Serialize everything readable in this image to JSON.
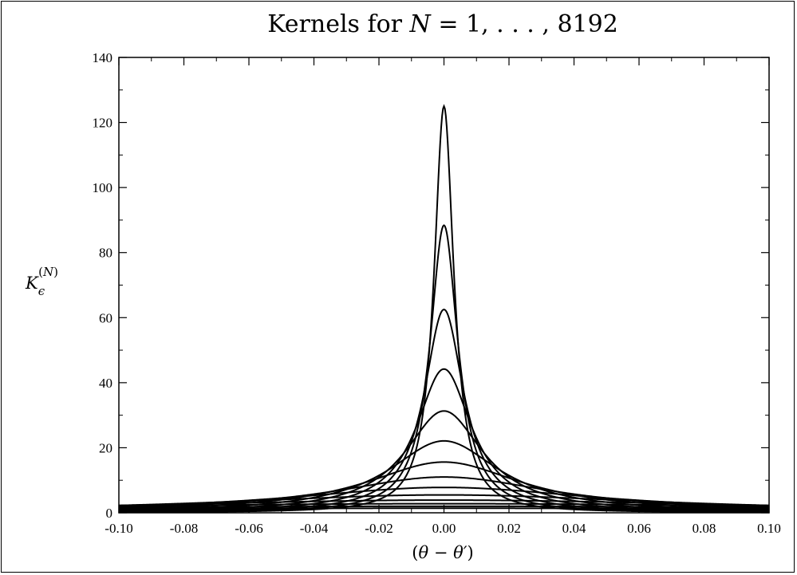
{
  "chart_data": {
    "type": "line",
    "title": "Kernels for N = 1, . . . , 8192",
    "xlabel": "(θ − θ′)",
    "ylabel": "K_ϵ^(N)",
    "xlim": [
      -0.1,
      0.1
    ],
    "ylim": [
      0,
      140
    ],
    "x_ticks": [
      "-0.10",
      "-0.08",
      "-0.06",
      "-0.04",
      "-0.02",
      "0.00",
      "0.02",
      "0.04",
      "0.06",
      "0.08",
      "0.10"
    ],
    "y_ticks": [
      "0",
      "20",
      "40",
      "60",
      "80",
      "100",
      "120",
      "140"
    ],
    "grid": false,
    "legend": "none",
    "line_color": "#000000",
    "series_peaks": [
      125,
      88.4,
      62.5,
      44.2,
      31.3,
      22.1,
      15.6,
      11.0,
      7.8,
      5.5,
      3.9,
      2.8,
      2.0,
      1.4
    ]
  }
}
